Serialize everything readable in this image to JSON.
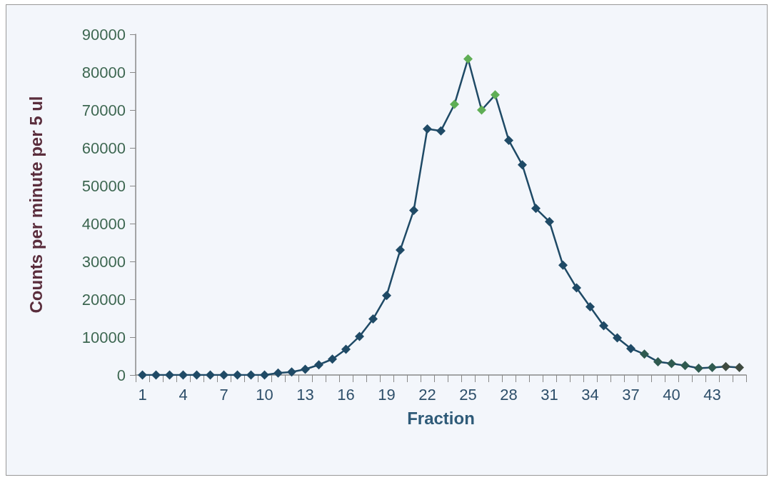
{
  "chart_data": {
    "type": "line",
    "xlabel": "Fraction",
    "ylabel": "Counts per minute per 5 ul",
    "categories": [
      "1",
      null,
      null,
      "4",
      null,
      null,
      "7",
      null,
      null,
      "10",
      null,
      null,
      "13",
      null,
      null,
      "16",
      null,
      null,
      "19",
      null,
      null,
      "22",
      null,
      null,
      "25",
      null,
      null,
      "28",
      null,
      null,
      "31",
      null,
      null,
      "34",
      null,
      null,
      "37",
      null,
      null,
      "40",
      null,
      null,
      "43",
      null,
      null
    ],
    "series": [
      {
        "color": "#1f4a66",
        "values": [
          0,
          0,
          0,
          0,
          0,
          0,
          0,
          0,
          0,
          0,
          500,
          800,
          1500,
          2700,
          4200,
          6800,
          10200,
          14800,
          21000,
          33000,
          43500,
          65000,
          64500,
          71500,
          83500,
          70000,
          74000,
          62000,
          55500,
          44000,
          40500,
          29000,
          23000,
          18000,
          13000,
          9800,
          7000,
          5500,
          3500,
          3000,
          2500,
          1800,
          2000,
          2200,
          2000
        ],
        "colors": [
          "#1f4a66",
          "#1f4a66",
          "#1f4a66",
          "#1f4a66",
          "#1f4a66",
          "#1f4a66",
          "#1f4a66",
          "#1f4a66",
          "#1f4a66",
          "#1f4a66",
          "#1f4a66",
          "#1f4a66",
          "#1f4a66",
          "#1f4a66",
          "#1f4a66",
          "#1f4a66",
          "#1f4a66",
          "#1f4a66",
          "#1f4a66",
          "#1f4a66",
          "#1f4a66",
          "#1f4a66",
          "#1f4a66",
          "#5fae55",
          "#5fae55",
          "#5fae55",
          "#5fae55",
          "#1f4a66",
          "#1f4a66",
          "#1f4a66",
          "#1f4a66",
          "#1f4a66",
          "#1f4a66",
          "#1f4a66",
          "#1f4a66",
          "#1f4a66",
          "#1f4a66",
          "#2f5a50",
          "#2f5a50",
          "#2f5a50",
          "#2f5a50",
          "#2f5a50",
          "#2f5a50",
          "#3e4a40",
          "#3e4a40"
        ]
      }
    ],
    "ylim": [
      0,
      90000
    ],
    "yticks": [
      0,
      10000,
      20000,
      30000,
      40000,
      50000,
      60000,
      70000,
      80000,
      90000
    ],
    "grid": false,
    "marker": "diamond",
    "line_style": "solid"
  }
}
